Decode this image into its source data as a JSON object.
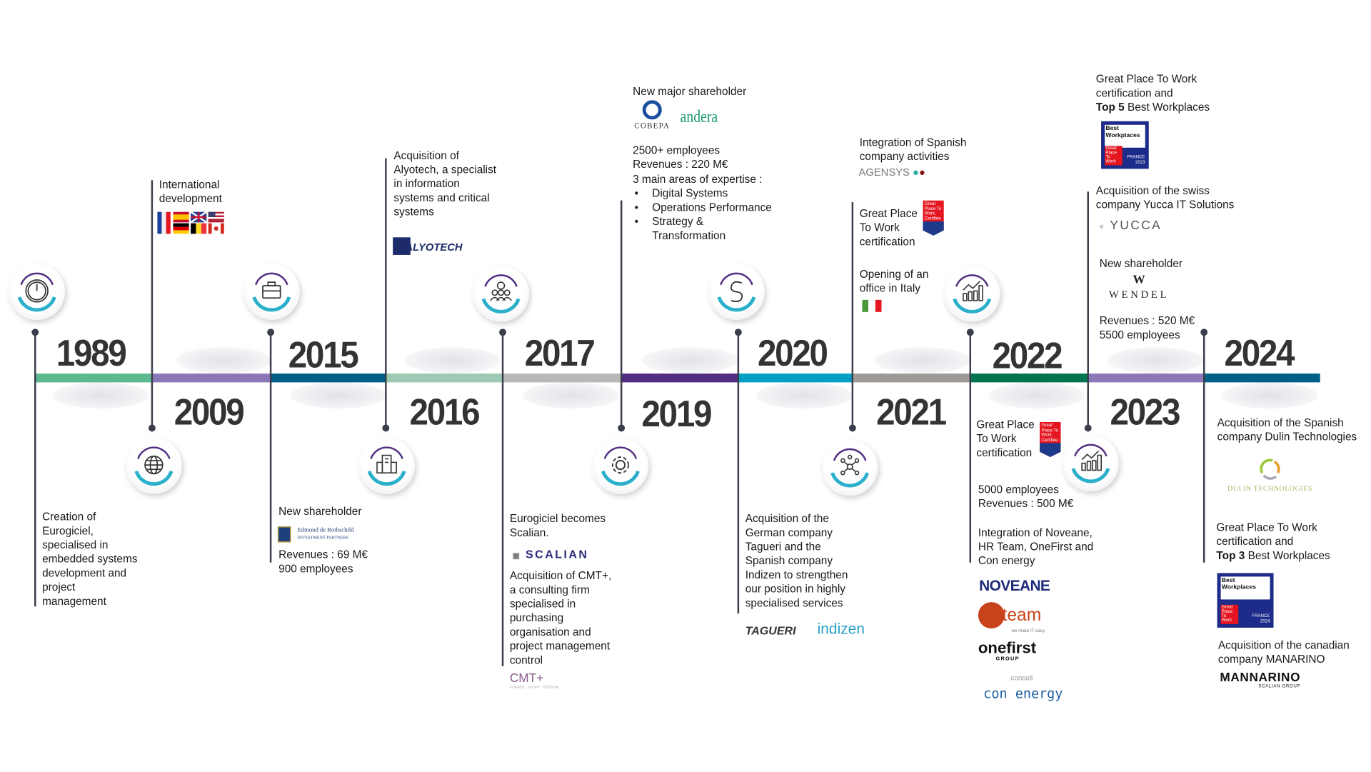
{
  "colors": {
    "segments": [
      "#5bb88f",
      "#8c78b8",
      "#005f86",
      "#9cc9b1",
      "#b8b8b8",
      "#512d82",
      "#00a0c6",
      "#9e9a98",
      "#00734f",
      "#8c78b8",
      "#005f86"
    ],
    "arc_top": "#512d82",
    "arc_bottom": "#2bb0cc",
    "line": "#3a3d4a"
  },
  "e1989": {
    "year": "1989",
    "icon": "power-icon",
    "lines": [
      "Creation of",
      "Eurogiciel,",
      "specialised in",
      "embedded systems",
      "development and",
      "project",
      "management"
    ]
  },
  "e2009": {
    "year": "2009",
    "icon": "globe-icon",
    "lines": [
      "International",
      "development"
    ],
    "flags": [
      "France",
      "Spain",
      "United Kingdom",
      "United States",
      "Germany",
      "Belgium",
      "Canada"
    ]
  },
  "e2015": {
    "year": "2015",
    "icon": "briefcase-icon",
    "lines": [
      "New shareholder"
    ],
    "logo": "Edmond de Rothschild",
    "logo_sub": "INVESTMENT PARTNERS",
    "lines2": [
      "Revenues : 69 M€",
      "900 employees"
    ]
  },
  "e2016": {
    "year": "2016",
    "icon": "building-icon",
    "lines": [
      "Acquisition of",
      "Alyotech, a specialist",
      "in information",
      "systems and critical",
      "systems"
    ],
    "logo": "ALYOTECH"
  },
  "e2017": {
    "year": "2017",
    "icon": "team-gear-icon",
    "lines": [
      "Eurogiciel becomes",
      "Scalian."
    ],
    "logo": "SCALIAN",
    "lines2": [
      "Acquisition of CMT+,",
      "a consulting firm",
      "specialised in",
      "purchasing",
      "organisation and",
      "project management",
      "control"
    ],
    "logo2": "CMT+",
    "logo2_sub": "CONSEIL · ACHAT · GESTION"
  },
  "e2019": {
    "year": "2019",
    "icon": "gear-icon",
    "lines": [
      "New major shareholder"
    ],
    "logo": "COBEPA",
    "logo2": "andera",
    "lines2": [
      "2500+ employees",
      "Revenues : 220 M€",
      "3 main areas of expertise :"
    ],
    "bullets": [
      "Digital Systems",
      "Operations Performance",
      "Strategy &",
      "Transformation"
    ]
  },
  "e2020": {
    "year": "2020",
    "icon": "transform-icon",
    "lines": [
      "Acquisition of the",
      "German company",
      "Tagueri and the",
      "Spanish company",
      "Indizen to strengthen",
      "our position in highly",
      "specialised services"
    ],
    "logo": "TAGUERI",
    "logo2": "indizen"
  },
  "e2021": {
    "year": "2021",
    "icon": "network-icon",
    "lines": [
      "Integration of Spanish",
      "company activities"
    ],
    "logo": "AGENSYS",
    "lines2": [
      "Great Place",
      "To Work",
      "certification"
    ],
    "badge": "Great Place To Work. Certifiée",
    "lines3": [
      "Opening of an",
      "office in Italy"
    ],
    "flag": "Italy"
  },
  "e2022": {
    "year": "2022",
    "icon": "growth-chart-icon",
    "lines": [
      "Great Place",
      "To Work",
      "certification"
    ],
    "badge": "Great Place To Work. Certifiée",
    "lines2": [
      "5000 employees",
      "Revenues : 500 M€"
    ],
    "lines3": [
      "Integration of Noveane,",
      "HR Team, OneFirst and",
      "Con energy"
    ],
    "logos": [
      "NOVEANE",
      "hr team",
      "onefirst",
      "con energy"
    ],
    "hr_sub": "we make IT easy",
    "onefirst_sub": "GROUP",
    "con_sub": "consult"
  },
  "e2023": {
    "year": "2023",
    "icon": "growth-chart-icon",
    "lines": [
      "Great Place To Work",
      "certification and"
    ],
    "bold": "Top 5",
    "rest": " Best Workplaces",
    "badge": {
      "title": "Best Workplaces",
      "red": "Great Place To Work",
      "country": "FRANCE",
      "yr": "2023"
    },
    "lines2": [
      "Acquisition of the swiss",
      "company  Yucca IT Solutions"
    ],
    "logo": "YUCCA",
    "lines3": [
      "New shareholder"
    ],
    "logo2": "WENDEL",
    "lines4": [
      "Revenues : 520 M€",
      "5500 employees"
    ]
  },
  "e2024": {
    "year": "2024",
    "lines": [
      "Acquisition of the Spanish",
      "company  Dulin Technologies"
    ],
    "logo": "DULIN TECHNOLOGIES",
    "lines2": [
      "Great Place To Work",
      "certification and"
    ],
    "bold": "Top 3",
    "rest": " Best Workplaces",
    "badge": {
      "title": "Best Workplaces",
      "red": "Great Place To Work",
      "country": "FRANCE",
      "yr": "2024"
    },
    "lines3": [
      "Acquisition of the canadian",
      "company  MANARINO"
    ],
    "logo2": "MANNARINO",
    "logo2_sub": "SCALIAN GROUP"
  }
}
